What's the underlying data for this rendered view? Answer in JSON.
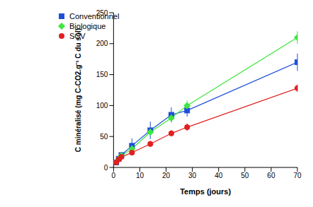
{
  "chart_data": {
    "type": "line",
    "x_label": "Temps (jours)",
    "y_label": "C minéralisé (mg C-CO2.g⁻¹ C du sol)",
    "x": [
      1,
      2,
      3,
      7,
      14,
      22,
      28,
      70
    ],
    "series": [
      {
        "name": "Conventionnel",
        "color": "#1f4fd6",
        "marker": "square",
        "values": [
          8,
          14,
          20,
          35,
          60,
          85,
          92,
          170
        ],
        "errors": [
          3,
          3,
          5,
          12,
          14,
          12,
          10,
          14
        ]
      },
      {
        "name": "Biologique",
        "color": "#3ee63e",
        "marker": "diamond",
        "values": [
          9,
          14,
          19,
          30,
          57,
          80,
          100,
          210
        ],
        "errors": [
          2,
          2,
          3,
          4,
          5,
          5,
          8,
          10
        ]
      },
      {
        "name": "SCV",
        "color": "#e02020",
        "marker": "circle",
        "values": [
          8,
          13,
          17,
          24,
          38,
          55,
          65,
          128
        ],
        "errors": [
          2,
          2,
          3,
          3,
          5,
          5,
          6,
          6
        ]
      }
    ],
    "xlim": [
      0,
      70
    ],
    "xticks": [
      0,
      10,
      20,
      30,
      40,
      50,
      60,
      70
    ],
    "ylim": [
      0,
      250
    ],
    "yticks": [
      0,
      50,
      100,
      150,
      200,
      250
    ],
    "grid": false,
    "legend": "top-left"
  }
}
